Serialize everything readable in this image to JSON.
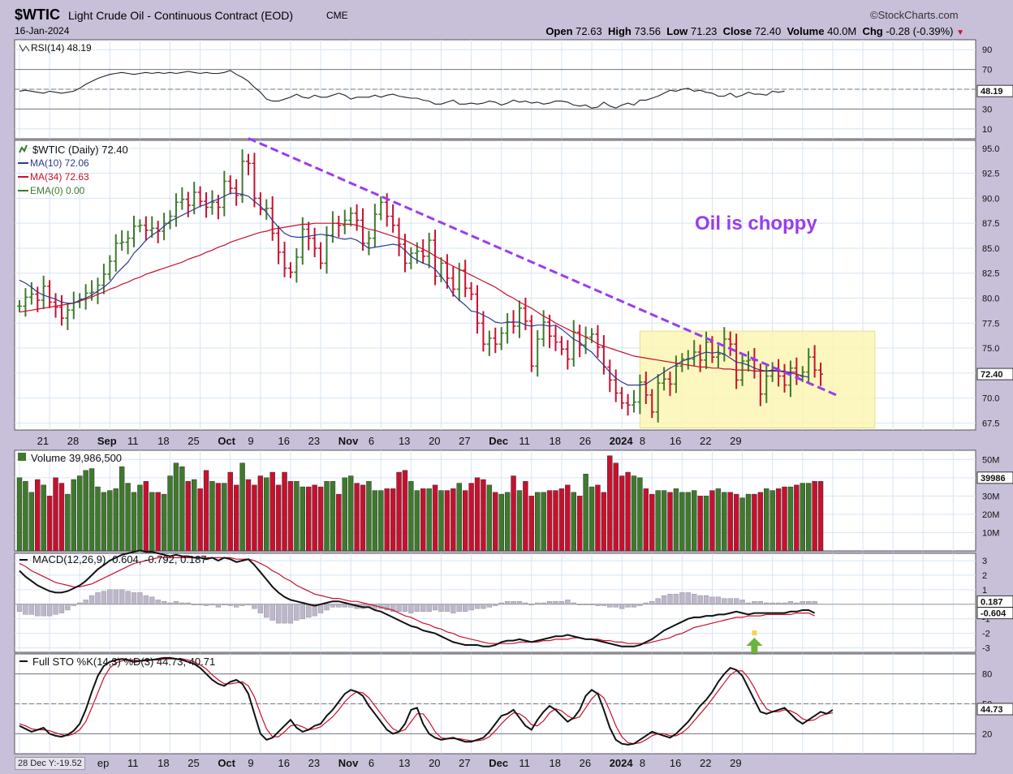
{
  "header": {
    "ticker": "$WTIC",
    "description": "Light Crude Oil - Continuous Contract (EOD)",
    "exchange": "CME",
    "source": "©StockCharts.com",
    "date": "16-Jan-2024",
    "open_label": "Open",
    "open": "72.63",
    "high_label": "High",
    "high": "73.56",
    "low_label": "Low",
    "low": "71.23",
    "close_label": "Close",
    "close": "72.40",
    "volume_label": "Volume",
    "volume": "40.0M",
    "chg_label": "Chg",
    "chg": "-0.28 (-0.39%)"
  },
  "colors": {
    "up": "#3e7a2c",
    "down": "#c8102e",
    "ma10": "#2c3a8c",
    "ma34": "#c8102e",
    "trend": "#9a3cf0",
    "annotation": "#9a3cf0",
    "highlight": "#fbf6b4",
    "arrow": "#6db33f"
  },
  "annotation": "Oil is choppy",
  "corner_readout": "28 Dec Y:-19.52",
  "x_axis": {
    "labels": [
      "21",
      "28",
      "Sep",
      "11",
      "18",
      "25",
      "Oct",
      "9",
      "16",
      "23",
      "Nov",
      "6",
      "13",
      "20",
      "27",
      "Dec",
      "11",
      "18",
      "26",
      "2024",
      "8",
      "16",
      "22",
      "29"
    ],
    "bold": [
      "Sep",
      "Oct",
      "Nov",
      "Dec",
      "2024"
    ],
    "bottom_labels": [
      "ep",
      "11",
      "18",
      "25",
      "Oct",
      "9",
      "16",
      "23",
      "Nov",
      "6",
      "13",
      "20",
      "27",
      "Dec",
      "11",
      "18",
      "26",
      "2024",
      "8",
      "16",
      "22",
      "29"
    ]
  },
  "chart_data": [
    {
      "type": "line",
      "panel": "rsi",
      "title": "RSI(14) 48.19",
      "yticks": [
        10,
        30,
        50,
        70,
        90
      ],
      "ylim": [
        0,
        100
      ],
      "ref_lines": [
        70,
        30
      ],
      "last_value": "48.19",
      "values": [
        48,
        49,
        48,
        47,
        46,
        48,
        47,
        46,
        47,
        48,
        51,
        55,
        58,
        61,
        63,
        65,
        66,
        67,
        66,
        65,
        66,
        67,
        66,
        67,
        66,
        67,
        66,
        67,
        68,
        67,
        66,
        67,
        66,
        66,
        67,
        69,
        65,
        62,
        58,
        52,
        47,
        40,
        38,
        38,
        40,
        42,
        45,
        42,
        41,
        44,
        42,
        42,
        44,
        46,
        44,
        40,
        42,
        42,
        42,
        44,
        42,
        44,
        45,
        43,
        42,
        41,
        41,
        39,
        38,
        35,
        35,
        37,
        39,
        35,
        35,
        36,
        35,
        36,
        38,
        37,
        34,
        36,
        39,
        37,
        38,
        36,
        37,
        35,
        36,
        38,
        38,
        37,
        34,
        33,
        34,
        31,
        32,
        37,
        33,
        31,
        34,
        36,
        34,
        39,
        39,
        41,
        43,
        46,
        49,
        48,
        50,
        51,
        48,
        49,
        47,
        46,
        43,
        43,
        46,
        42,
        44,
        47,
        45,
        45,
        44,
        48,
        47,
        48
      ]
    },
    {
      "type": "bar",
      "panel": "price",
      "title": "$WTIC (Daily) 72.40",
      "legend": [
        {
          "name": "MA(10) 72.06",
          "color": "#2c3a8c"
        },
        {
          "name": "MA(34) 72.63",
          "color": "#c8102e"
        },
        {
          "name": "EMA(0) 0.00",
          "color": "#3e7a2c"
        }
      ],
      "yticks": [
        67.5,
        70.0,
        72.5,
        75.0,
        77.5,
        80.0,
        82.5,
        85.0,
        87.5,
        90.0,
        92.5,
        95.0
      ],
      "ylim": [
        66.8,
        95.8
      ],
      "last_value": "72.40",
      "close": [
        79.2,
        80.1,
        80.4,
        79.8,
        81.2,
        79.6,
        79.1,
        78.0,
        78.8,
        79.6,
        79.9,
        80.5,
        80.6,
        81.3,
        82.4,
        83.7,
        85.5,
        85.6,
        86.0,
        87.2,
        87.3,
        86.8,
        87.0,
        86.7,
        87.5,
        88.2,
        89.6,
        89.9,
        89.3,
        90.6,
        89.7,
        89.1,
        89.6,
        89.1,
        91.7,
        91.0,
        90.3,
        93.7,
        93.5,
        90.0,
        88.9,
        89.0,
        86.5,
        84.6,
        83.0,
        82.6,
        84.1,
        86.9,
        86.0,
        85.0,
        83.5,
        86.3,
        87.5,
        87.3,
        87.8,
        88.5,
        87.8,
        85.5,
        86.0,
        88.4,
        89.6,
        88.2,
        87.3,
        85.4,
        83.5,
        84.5,
        84.7,
        84.2,
        85.8,
        82.2,
        83.5,
        82.0,
        80.9,
        82.8,
        81.0,
        80.4,
        77.5,
        75.4,
        76.0,
        75.4,
        76.5,
        77.6,
        77.2,
        79.0,
        77.7,
        73.2,
        75.9,
        77.6,
        76.2,
        75.6,
        74.9,
        73.9,
        76.6,
        75.3,
        76.1,
        76.4,
        75.1,
        73.1,
        71.8,
        70.5,
        69.5,
        69.3,
        69.6,
        71.6,
        70.3,
        68.6,
        71.5,
        71.9,
        71.4,
        73.2,
        73.9,
        73.9,
        74.6,
        73.8,
        75.6,
        74.1,
        74.4,
        75.9,
        75.4,
        71.8,
        73.7,
        73.8,
        72.7,
        70.4,
        72.2,
        73.0,
        72.2,
        71.3,
        73.0,
        72.2,
        72.6,
        74.1,
        72.8,
        72.4
      ],
      "ma10": [
        81.8,
        81.5,
        81.1,
        80.6,
        80.3,
        80.1,
        79.9,
        79.6,
        79.5,
        79.5,
        79.8,
        80.0,
        80.3,
        80.7,
        81.1,
        81.6,
        82.4,
        83.0,
        83.6,
        84.5,
        85.1,
        85.8,
        86.3,
        86.7,
        87.2,
        87.7,
        88.0,
        88.3,
        88.6,
        88.9,
        89.2,
        89.4,
        89.7,
        89.9,
        90.2,
        90.5,
        90.5,
        90.4,
        90.2,
        89.7,
        89.2,
        88.6,
        87.8,
        87.1,
        86.5,
        86.2,
        86.1,
        86.1,
        86.2,
        86.3,
        86.4,
        86.3,
        86.2,
        86.0,
        85.9,
        86.0,
        85.8,
        85.4,
        85.0,
        85.1,
        85.2,
        85.3,
        85.4,
        85.3,
        84.8,
        84.2,
        83.8,
        83.5,
        83.3,
        82.9,
        82.2,
        81.4,
        80.4,
        79.8,
        79.3,
        78.7,
        78.6,
        78.3,
        78.0,
        77.6,
        77.5,
        77.6,
        77.6,
        77.6,
        77.3,
        77.2,
        77.3,
        77.3,
        77.2,
        77.3,
        76.9,
        76.4,
        75.9,
        75.6,
        75.0,
        74.6,
        73.9,
        73.3,
        72.6,
        72.0,
        71.6,
        71.3,
        71.3,
        71.3,
        71.4,
        71.8,
        72.2,
        72.6,
        73.0,
        73.3,
        73.7,
        73.9,
        74.1,
        74.4,
        74.6,
        74.5,
        74.6,
        74.4,
        74.0,
        73.6,
        73.5,
        73.3,
        73.0,
        72.8,
        72.7,
        72.8,
        72.7,
        72.7,
        72.5,
        72.4,
        72.2,
        72.1
      ],
      "ma34": [
        78.6,
        78.7,
        78.8,
        78.9,
        79.0,
        79.1,
        79.2,
        79.3,
        79.4,
        79.5,
        79.7,
        79.9,
        80.1,
        80.4,
        80.6,
        80.9,
        81.1,
        81.4,
        81.6,
        81.9,
        82.1,
        82.4,
        82.6,
        82.8,
        83.0,
        83.2,
        83.4,
        83.6,
        83.9,
        84.1,
        84.3,
        84.6,
        84.8,
        85.1,
        85.3,
        85.6,
        85.8,
        86.0,
        86.2,
        86.4,
        86.6,
        86.7,
        86.9,
        87.0,
        87.1,
        87.2,
        87.3,
        87.4,
        87.4,
        87.5,
        87.5,
        87.5,
        87.5,
        87.5,
        87.4,
        87.4,
        87.3,
        87.1,
        86.9,
        86.8,
        86.6,
        86.4,
        86.2,
        86.0,
        85.8,
        85.5,
        85.2,
        84.9,
        84.6,
        84.2,
        83.9,
        83.5,
        83.2,
        82.9,
        82.6,
        82.3,
        82.0,
        81.7,
        81.4,
        81.1,
        80.7,
        80.3,
        80.0,
        79.6,
        79.3,
        79.0,
        78.6,
        78.2,
        77.9,
        77.5,
        77.2,
        76.9,
        76.6,
        76.4,
        76.1,
        75.8,
        75.4,
        75.2,
        75.0,
        74.8,
        74.6,
        74.4,
        74.2,
        74.1,
        74.0,
        73.9,
        73.8,
        73.7,
        73.6,
        73.5,
        73.4,
        73.3,
        73.2,
        73.1,
        73.1,
        73.0,
        73.0,
        72.9,
        72.9,
        72.8,
        72.8,
        72.8,
        72.7,
        72.7,
        72.7,
        72.7,
        72.7,
        72.6,
        72.6,
        72.6
      ],
      "trendline": [
        [
          38,
          96.0
        ],
        [
          136,
          70.2
        ]
      ],
      "highlight_box": {
        "x0": 103,
        "x1": 142,
        "y0": 67.0,
        "y1": 76.7
      }
    },
    {
      "type": "bar",
      "panel": "volume",
      "title": "Volume 39,986,500",
      "yticks": [
        10,
        20,
        30,
        40,
        50
      ],
      "yunits": "M",
      "ylim": [
        0,
        55
      ],
      "last_value": "39986500",
      "values": [
        40,
        38,
        32,
        39,
        36,
        30,
        40,
        37,
        31,
        39,
        41,
        44,
        45,
        35,
        32,
        33,
        34,
        46,
        37,
        32,
        36,
        38,
        32,
        32,
        31,
        41,
        48,
        46,
        38,
        39,
        34,
        44,
        38,
        37,
        37,
        43,
        36,
        48,
        39,
        36,
        41,
        40,
        43,
        36,
        43,
        38,
        38,
        35,
        35,
        36,
        35,
        38,
        38,
        31,
        40,
        41,
        37,
        36,
        38,
        33,
        33,
        34,
        34,
        43,
        44,
        38,
        33,
        34,
        34,
        36,
        33,
        33,
        34,
        37,
        33,
        37,
        40,
        39,
        36,
        32,
        31,
        32,
        41,
        33,
        38,
        30,
        32,
        32,
        33,
        33,
        34,
        36,
        32,
        30,
        42,
        35,
        36,
        32,
        52,
        48,
        41,
        43,
        41,
        40,
        34,
        31,
        33,
        33,
        32,
        34,
        32,
        32,
        33,
        30,
        30,
        33,
        34,
        32,
        32,
        31,
        29,
        31,
        31,
        32,
        34,
        33,
        34,
        35,
        35,
        36,
        37,
        37,
        38,
        38,
        39,
        40,
        40
      ]
    },
    {
      "type": "line",
      "panel": "macd",
      "title": "MACD(12,26,9) -0.604, -0.792, 0.187",
      "yticks": [
        -3,
        -2,
        -1,
        0,
        1,
        2,
        3
      ],
      "ylim": [
        -3.3,
        3.5
      ],
      "last_values": [
        "0.187",
        "-0.604"
      ],
      "macd": [
        2.3,
        1.9,
        1.6,
        1.3,
        1.1,
        0.9,
        0.8,
        0.8,
        0.9,
        1.1,
        1.3,
        1.6,
        2.0,
        2.4,
        2.7,
        3.0,
        3.2,
        3.4,
        3.5,
        3.6,
        3.7,
        3.6,
        3.6,
        3.5,
        3.4,
        3.3,
        3.4,
        3.3,
        3.3,
        3.2,
        3.2,
        3.1,
        3.2,
        3.0,
        3.2,
        3.1,
        2.9,
        3.0,
        3.1,
        2.7,
        2.2,
        1.7,
        1.2,
        0.8,
        0.5,
        0.3,
        0.2,
        0.1,
        0.0,
        -0.1,
        0.0,
        0.1,
        0.2,
        0.2,
        0.1,
        0.0,
        -0.1,
        -0.2,
        -0.2,
        -0.4,
        -0.5,
        -0.7,
        -0.9,
        -1.1,
        -1.3,
        -1.5,
        -1.6,
        -1.8,
        -1.9,
        -2.0,
        -2.2,
        -2.4,
        -2.6,
        -2.7,
        -2.8,
        -2.8,
        -2.8,
        -2.9,
        -2.9,
        -2.8,
        -2.6,
        -2.5,
        -2.5,
        -2.4,
        -2.5,
        -2.6,
        -2.5,
        -2.4,
        -2.3,
        -2.2,
        -2.2,
        -2.1,
        -2.2,
        -2.3,
        -2.4,
        -2.4,
        -2.5,
        -2.6,
        -2.7,
        -2.8,
        -2.9,
        -2.9,
        -2.9,
        -2.8,
        -2.6,
        -2.4,
        -2.1,
        -1.8,
        -1.6,
        -1.4,
        -1.2,
        -1.0,
        -0.9,
        -0.9,
        -0.8,
        -0.8,
        -0.7,
        -0.7,
        -0.6,
        -0.5,
        -0.6,
        -0.7,
        -0.6,
        -0.6,
        -0.6,
        -0.6,
        -0.6,
        -0.6,
        -0.5,
        -0.5,
        -0.4,
        -0.4,
        -0.6
      ],
      "signal": [
        2.8,
        2.6,
        2.3,
        2.1,
        1.9,
        1.7,
        1.5,
        1.4,
        1.3,
        1.2,
        1.2,
        1.3,
        1.4,
        1.6,
        1.8,
        2.0,
        2.2,
        2.4,
        2.6,
        2.8,
        2.9,
        3.0,
        3.1,
        3.2,
        3.2,
        3.2,
        3.2,
        3.2,
        3.2,
        3.2,
        3.2,
        3.2,
        3.2,
        3.2,
        3.2,
        3.2,
        3.1,
        3.1,
        3.1,
        3.0,
        2.8,
        2.6,
        2.3,
        2.1,
        1.8,
        1.6,
        1.3,
        1.1,
        0.9,
        0.7,
        0.6,
        0.5,
        0.4,
        0.4,
        0.3,
        0.2,
        0.2,
        0.1,
        0.0,
        -0.1,
        -0.2,
        -0.3,
        -0.4,
        -0.6,
        -0.8,
        -0.9,
        -1.1,
        -1.3,
        -1.4,
        -1.6,
        -1.7,
        -1.9,
        -2.0,
        -2.2,
        -2.3,
        -2.4,
        -2.5,
        -2.6,
        -2.7,
        -2.7,
        -2.7,
        -2.7,
        -2.7,
        -2.6,
        -2.6,
        -2.6,
        -2.6,
        -2.5,
        -2.5,
        -2.4,
        -2.4,
        -2.4,
        -2.3,
        -2.3,
        -2.4,
        -2.4,
        -2.4,
        -2.5,
        -2.5,
        -2.6,
        -2.6,
        -2.7,
        -2.7,
        -2.7,
        -2.7,
        -2.6,
        -2.5,
        -2.4,
        -2.3,
        -2.1,
        -2.0,
        -1.8,
        -1.6,
        -1.5,
        -1.4,
        -1.3,
        -1.2,
        -1.1,
        -1.0,
        -0.9,
        -0.9,
        -0.8,
        -0.8,
        -0.8,
        -0.7,
        -0.7,
        -0.7,
        -0.7,
        -0.7,
        -0.6,
        -0.6,
        -0.6,
        -0.8
      ],
      "histogram_scale": 1.0,
      "arrow": {
        "index": 122,
        "value": -2.3
      }
    },
    {
      "type": "line",
      "panel": "stochastic",
      "title": "Full STO %K(14,3) %D(3) 44.73, 40.71",
      "yticks": [
        20,
        50,
        80
      ],
      "ylim": [
        0,
        100
      ],
      "ref_lines": [
        80,
        20
      ],
      "last_value": "44.73",
      "k": [
        28,
        25,
        22,
        24,
        26,
        20,
        18,
        17,
        19,
        23,
        30,
        44,
        62,
        78,
        88,
        92,
        94,
        95,
        94,
        92,
        93,
        94,
        94,
        95,
        96,
        96,
        95,
        94,
        92,
        90,
        86,
        80,
        74,
        70,
        68,
        72,
        74,
        70,
        60,
        40,
        20,
        14,
        16,
        22,
        28,
        34,
        26,
        22,
        24,
        28,
        30,
        38,
        44,
        52,
        60,
        64,
        62,
        58,
        48,
        40,
        32,
        24,
        20,
        22,
        30,
        44,
        46,
        30,
        20,
        16,
        14,
        15,
        16,
        14,
        12,
        12,
        14,
        16,
        22,
        30,
        38,
        40,
        44,
        36,
        28,
        24,
        34,
        42,
        48,
        44,
        38,
        32,
        36,
        44,
        58,
        64,
        60,
        44,
        26,
        14,
        10,
        9,
        10,
        14,
        18,
        22,
        20,
        18,
        16,
        20,
        26,
        32,
        40,
        48,
        54,
        62,
        72,
        80,
        86,
        84,
        78,
        66,
        54,
        42,
        40,
        42,
        44,
        46,
        40,
        34,
        30,
        34,
        38,
        42,
        40,
        44
      ],
      "d": [
        30,
        28,
        25,
        24,
        24,
        23,
        21,
        19,
        18,
        20,
        24,
        32,
        46,
        61,
        76,
        86,
        91,
        93,
        94,
        94,
        93,
        93,
        94,
        94,
        95,
        95,
        95,
        95,
        94,
        92,
        89,
        85,
        79,
        74,
        70,
        70,
        71,
        72,
        68,
        57,
        40,
        25,
        17,
        17,
        22,
        28,
        29,
        27,
        24,
        25,
        27,
        32,
        37,
        44,
        52,
        58,
        62,
        61,
        56,
        48,
        40,
        32,
        25,
        22,
        24,
        32,
        40,
        40,
        32,
        22,
        16,
        15,
        15,
        15,
        14,
        13,
        13,
        14,
        17,
        23,
        30,
        36,
        41,
        40,
        36,
        29,
        28,
        33,
        41,
        45,
        43,
        38,
        35,
        37,
        46,
        55,
        61,
        56,
        43,
        28,
        17,
        11,
        10,
        11,
        14,
        18,
        20,
        20,
        18,
        18,
        21,
        26,
        33,
        40,
        47,
        55,
        63,
        71,
        79,
        83,
        83,
        76,
        66,
        54,
        45,
        42,
        42,
        44,
        43,
        40,
        35,
        33,
        34,
        38,
        40,
        41
      ]
    }
  ]
}
